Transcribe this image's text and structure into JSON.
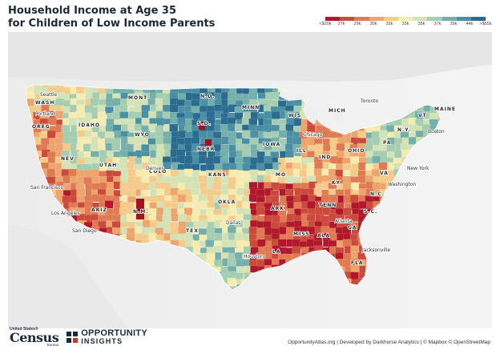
{
  "title": {
    "line1": "Household Income at Age 35",
    "line2": "for Children of Low Income Parents"
  },
  "legend": {
    "labels": [
      "<$20k",
      "27k",
      "29k",
      "30k",
      "32k",
      "33k",
      "35k",
      "37k",
      "39k",
      "44k",
      ">$55k"
    ],
    "colors": [
      "#b2182b",
      "#cc4a3c",
      "#df7a52",
      "#eda56d",
      "#f5cb8c",
      "#f7ecb0",
      "#d4e3b5",
      "#a5cdb1",
      "#74afab",
      "#4a8fa3",
      "#2b6b8f"
    ]
  },
  "map": {
    "states": [
      "WASH",
      "OREG",
      "IDAHO",
      "MONT",
      "N.D.",
      "S.D.",
      "NEBR",
      "KANS",
      "OKLA",
      "ARIZ",
      "N.M.",
      "COLO",
      "WYO",
      "NEV",
      "UTAH",
      "MINN",
      "IOWA",
      "MO",
      "ILL",
      "MICH",
      "WIS",
      "OHIO",
      "MAINE",
      "N.Y.",
      "TENN",
      "GA",
      "ALA",
      "MISS",
      "N.C.",
      "S.C.",
      "VA",
      "KY",
      "TEX",
      "LA",
      "ARK",
      "IND",
      "PA",
      "FLA",
      "VT"
    ],
    "cities": [
      "Portland",
      "Seattle",
      "San Francisco",
      "Los Angeles",
      "San Diego",
      "Denver",
      "Dallas",
      "Houston",
      "Atlanta",
      "Chicago",
      "Jacksonville",
      "New York",
      "Boston",
      "Toronto",
      "Washington"
    ]
  },
  "logos": {
    "census_us": "United States®",
    "census_name": "Census",
    "census_bureau": "Bureau",
    "oi_line1": "OPPORTUNITY",
    "oi_line2": "INSIGHTS"
  },
  "attribution": "OpportunityAtlas.org | Developed by Darkhorse Analytics | © Mapbox © OpenStreetMap"
}
